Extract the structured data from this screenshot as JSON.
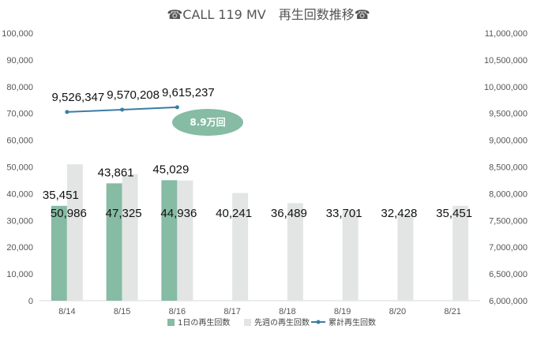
{
  "chart_data": {
    "type": "bar",
    "title": "☎CALL 119 MV　再生回数推移☎",
    "categories": [
      "8/14",
      "8/15",
      "8/16",
      "8/17",
      "8/18",
      "8/19",
      "8/20",
      "8/21"
    ],
    "series": [
      {
        "name": "1日の再生回数",
        "type": "bar",
        "axis": "left",
        "color": "#86bba4",
        "values": [
          35451,
          43861,
          45029,
          null,
          null,
          null,
          null,
          null
        ]
      },
      {
        "name": "先週の再生回数",
        "type": "bar",
        "axis": "left",
        "color": "#e3e5e5",
        "values": [
          50986,
          47325,
          44936,
          40241,
          36489,
          33701,
          32428,
          35451
        ]
      },
      {
        "name": "累計再生回数",
        "type": "line",
        "axis": "right",
        "color": "#3a7ca5",
        "values": [
          9526347,
          9570208,
          9615237,
          null,
          null,
          null,
          null,
          null
        ]
      }
    ],
    "series_labels": [
      [
        "35,451",
        "43,861",
        "45,029",
        "",
        "",
        "",
        "",
        ""
      ],
      [
        "50,986",
        "47,325",
        "44,936",
        "40,241",
        "36,489",
        "33,701",
        "32,428",
        "35,451"
      ],
      [
        "9,526,347",
        "9,570,208",
        "9,615,237",
        "",
        "",
        "",
        "",
        ""
      ]
    ],
    "y_left": {
      "min": 0,
      "max": 100000,
      "step": 10000,
      "tick_labels": [
        "0",
        "10,000",
        "20,000",
        "30,000",
        "40,000",
        "50,000",
        "60,000",
        "70,000",
        "80,000",
        "90,000",
        "100,000"
      ]
    },
    "y_right": {
      "min": 6000000,
      "max": 11000000,
      "step": 500000,
      "tick_labels": [
        "6,000,000",
        "6,500,000",
        "7,000,000",
        "7,500,000",
        "8,000,000",
        "8,500,000",
        "9,000,000",
        "9,500,000",
        "10,000,000",
        "10,500,000",
        "11,000,000"
      ]
    },
    "grid": false,
    "legend_position": "bottom",
    "annotation": {
      "text": "8.9万回",
      "color": "#86bba4"
    }
  }
}
